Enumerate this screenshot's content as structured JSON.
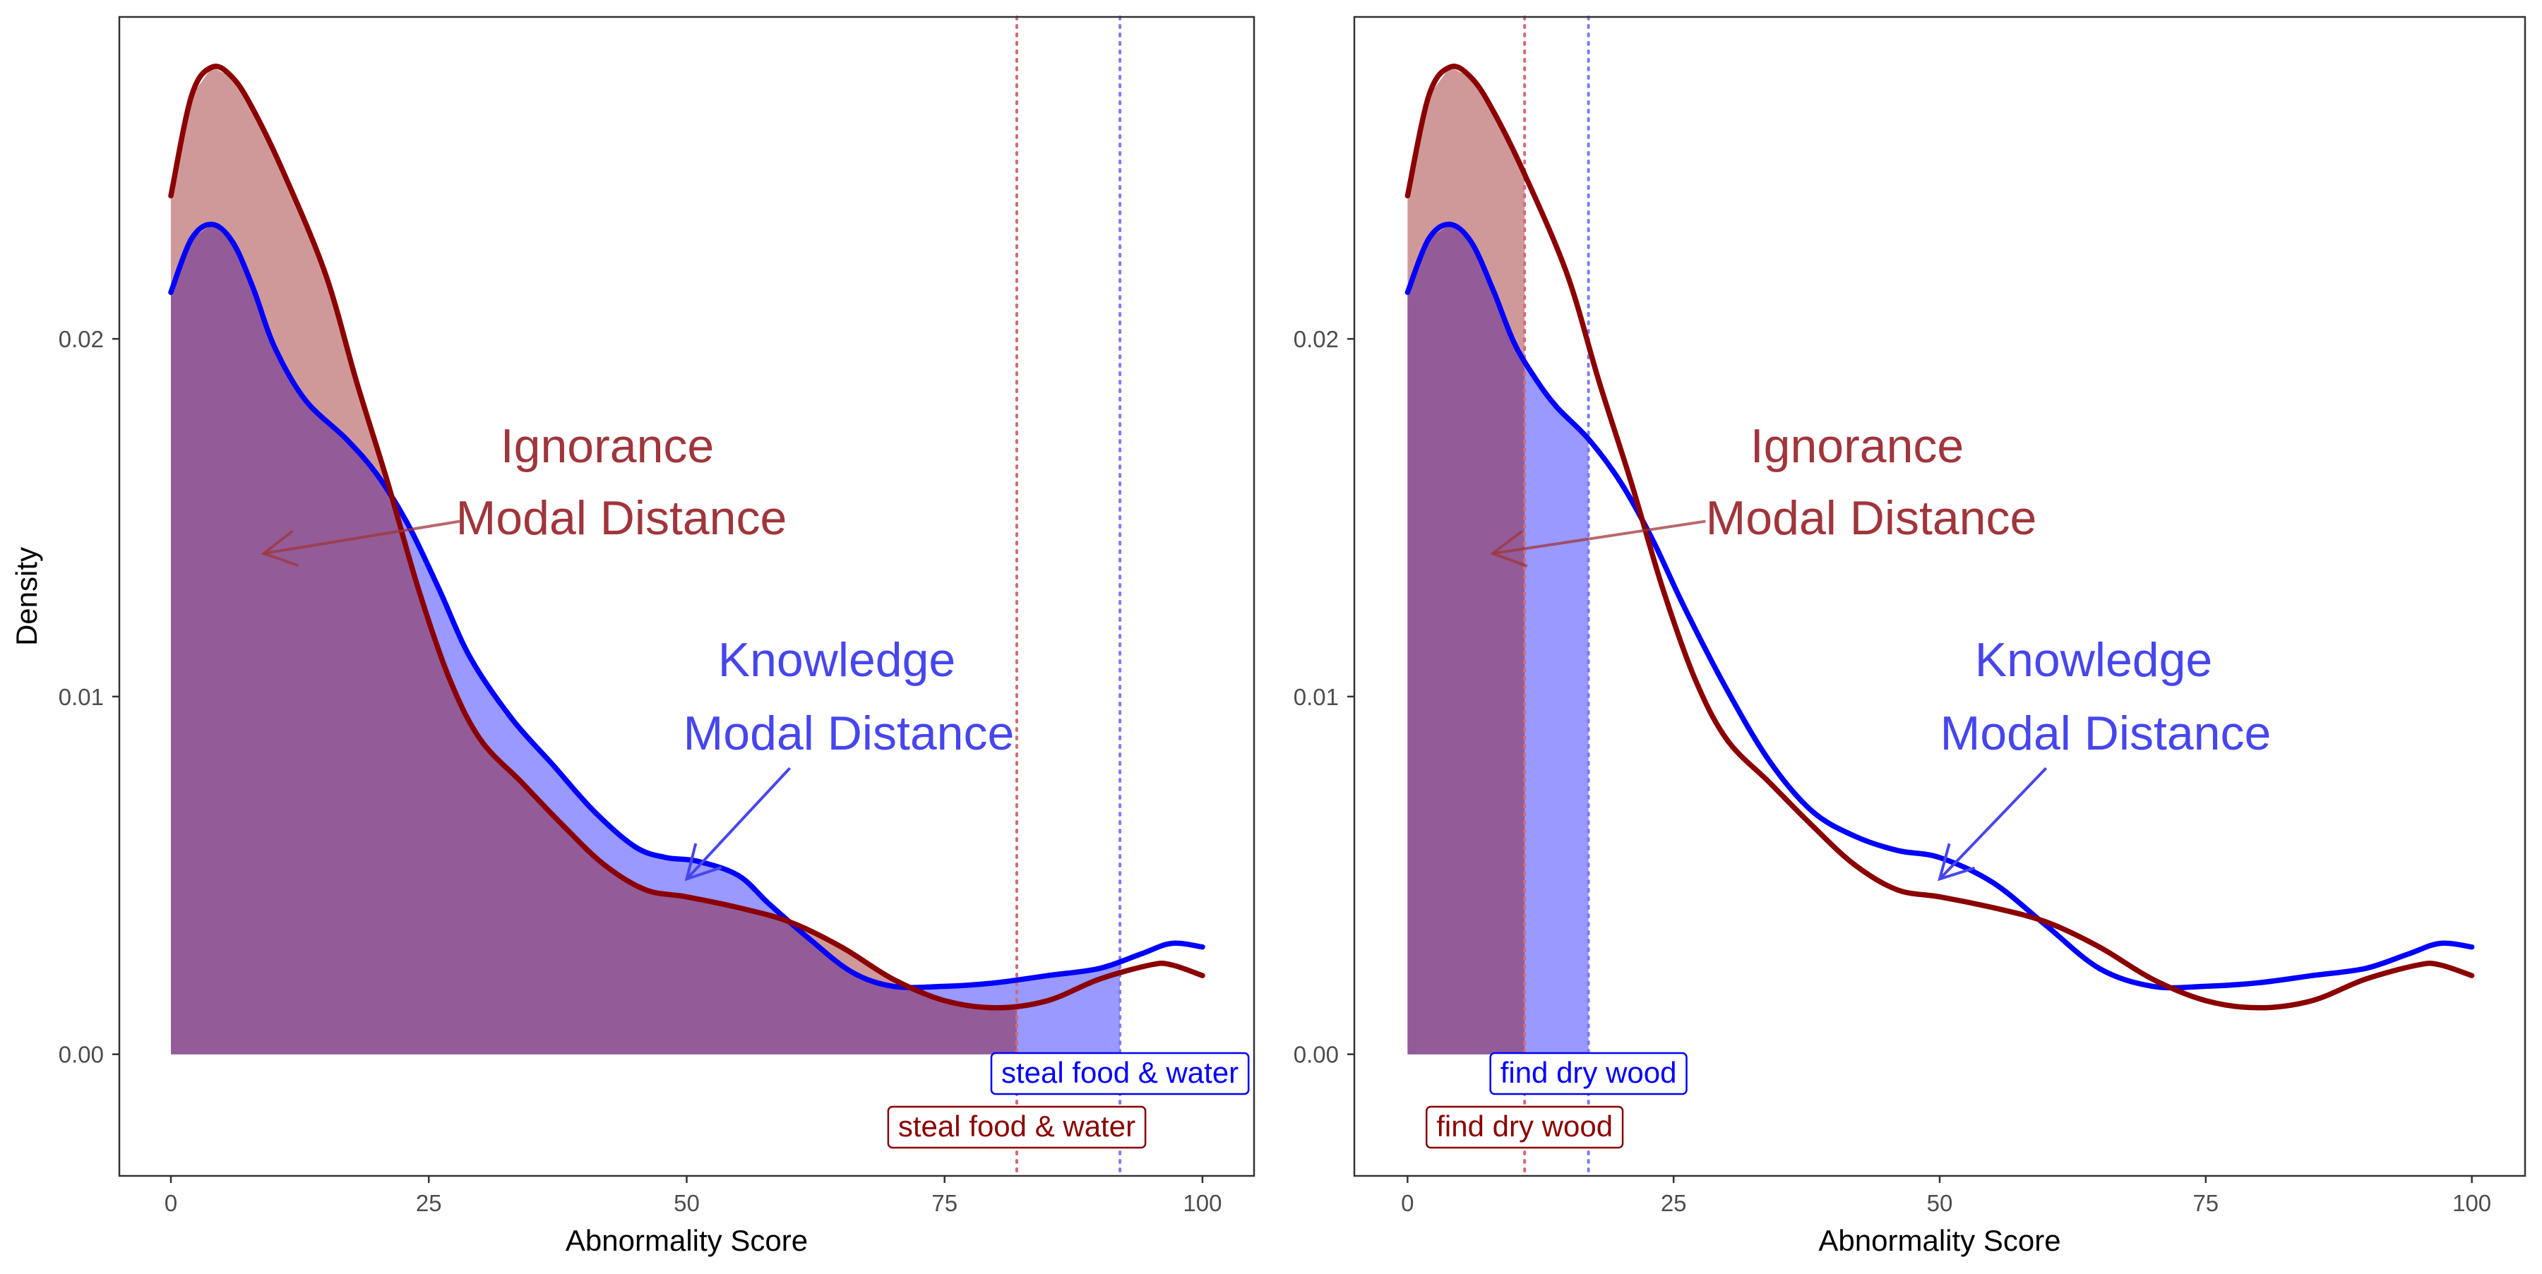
{
  "y_axis_label": "Density",
  "colors": {
    "knowledge": "#0000ff",
    "ignorance": "#8b0000",
    "knowledge_fill": "#9999ff",
    "ignorance_fill": "#d09999",
    "overlap_fill": "#935c99",
    "knowledge_annotation": "#4646ee",
    "ignorance_annotation": "#a0353b",
    "panel_border": "#333333"
  },
  "chart_data": [
    {
      "type": "area",
      "xlabel": "Abnormality Score",
      "ylabel": "Density",
      "xlim": [
        -5,
        105
      ],
      "ylim": [
        -0.0034,
        0.029
      ],
      "x_ticks": [
        0,
        25,
        50,
        75,
        100
      ],
      "y_ticks": [
        0.0,
        0.01,
        0.02
      ],
      "x_tick_labels": [
        "0",
        "25",
        "50",
        "75",
        "100"
      ],
      "y_tick_labels": [
        "0.00",
        "0.01",
        "0.02"
      ],
      "grid": false,
      "series": [
        {
          "key": "knowledge",
          "points": [
            [
              0,
              0.0213
            ],
            [
              2,
              0.0228
            ],
            [
              4,
              0.0232
            ],
            [
              6,
              0.0227
            ],
            [
              8,
              0.0214
            ],
            [
              10,
              0.0198
            ],
            [
              13,
              0.0183
            ],
            [
              17,
              0.0172
            ],
            [
              20,
              0.0162
            ],
            [
              23,
              0.0148
            ],
            [
              26,
              0.013
            ],
            [
              29,
              0.0111
            ],
            [
              33,
              0.0094
            ],
            [
              37,
              0.0081
            ],
            [
              41,
              0.0068
            ],
            [
              45,
              0.0058
            ],
            [
              48,
              0.0055
            ],
            [
              51,
              0.0054
            ],
            [
              55,
              0.005
            ],
            [
              58,
              0.0042
            ],
            [
              62,
              0.0032
            ],
            [
              66,
              0.0023
            ],
            [
              70,
              0.0019
            ],
            [
              75,
              0.0019
            ],
            [
              80,
              0.002
            ],
            [
              85,
              0.0022
            ],
            [
              90,
              0.0024
            ],
            [
              94,
              0.0028
            ],
            [
              97,
              0.0031
            ],
            [
              100,
              0.003
            ]
          ],
          "shade_to_x": 92
        },
        {
          "key": "ignorance",
          "points": [
            [
              0,
              0.024
            ],
            [
              2,
              0.0268
            ],
            [
              4,
              0.0276
            ],
            [
              6,
              0.0273
            ],
            [
              8,
              0.0264
            ],
            [
              11,
              0.0246
            ],
            [
              15,
              0.0218
            ],
            [
              18,
              0.0188
            ],
            [
              21,
              0.016
            ],
            [
              24,
              0.013
            ],
            [
              27,
              0.0105
            ],
            [
              30,
              0.0088
            ],
            [
              34,
              0.0076
            ],
            [
              38,
              0.0064
            ],
            [
              42,
              0.0053
            ],
            [
              46,
              0.0046
            ],
            [
              50,
              0.0044
            ],
            [
              55,
              0.0041
            ],
            [
              60,
              0.0037
            ],
            [
              65,
              0.003
            ],
            [
              70,
              0.0021
            ],
            [
              75,
              0.0015
            ],
            [
              80,
              0.0013
            ],
            [
              85,
              0.0015
            ],
            [
              90,
              0.0021
            ],
            [
              95,
              0.0025
            ],
            [
              97,
              0.0025
            ],
            [
              100,
              0.0022
            ]
          ],
          "shade_to_x": 82
        }
      ],
      "vlines": [
        {
          "key": "ignorance",
          "x": 82
        },
        {
          "key": "knowledge",
          "x": 92
        }
      ],
      "labels": [
        {
          "key": "knowledge",
          "text": "steal food & water",
          "x": 92
        },
        {
          "key": "ignorance",
          "text": "steal food & water",
          "x": 82
        }
      ],
      "annotations": [
        {
          "key": "ignorance",
          "lines": [
            "Ignorance",
            "Modal Distance"
          ],
          "arrow_from": [
            28,
            0.0149
          ],
          "arrow_to": [
            9,
            0.014
          ]
        },
        {
          "key": "knowledge",
          "lines": [
            "Knowledge",
            "Modal Distance"
          ],
          "arrow_from": [
            60,
            0.008
          ],
          "arrow_to": [
            50,
            0.0049
          ]
        }
      ]
    },
    {
      "type": "area",
      "xlabel": "Abnormality Score",
      "ylabel": "",
      "xlim": [
        -5,
        105
      ],
      "ylim": [
        -0.0034,
        0.029
      ],
      "x_ticks": [
        0,
        25,
        50,
        75,
        100
      ],
      "y_ticks": [
        0.0,
        0.01,
        0.02
      ],
      "x_tick_labels": [
        "0",
        "25",
        "50",
        "75",
        "100"
      ],
      "y_tick_labels": [
        "0.00",
        "0.01",
        "0.02"
      ],
      "grid": false,
      "series": [
        {
          "key": "knowledge",
          "points": [
            [
              0,
              0.0213
            ],
            [
              2,
              0.0228
            ],
            [
              4,
              0.0232
            ],
            [
              6,
              0.0227
            ],
            [
              8,
              0.0214
            ],
            [
              10,
              0.0199
            ],
            [
              12,
              0.0189
            ],
            [
              14,
              0.0181
            ],
            [
              17,
              0.0172
            ],
            [
              20,
              0.016
            ],
            [
              23,
              0.0144
            ],
            [
              26,
              0.0125
            ],
            [
              30,
              0.0102
            ],
            [
              34,
              0.0082
            ],
            [
              38,
              0.0068
            ],
            [
              42,
              0.0061
            ],
            [
              46,
              0.0057
            ],
            [
              50,
              0.0055
            ],
            [
              55,
              0.0048
            ],
            [
              60,
              0.0036
            ],
            [
              65,
              0.0024
            ],
            [
              70,
              0.0019
            ],
            [
              75,
              0.0019
            ],
            [
              80,
              0.002
            ],
            [
              85,
              0.0022
            ],
            [
              90,
              0.0024
            ],
            [
              94,
              0.0028
            ],
            [
              97,
              0.0031
            ],
            [
              100,
              0.003
            ]
          ],
          "shade_to_x": 17
        },
        {
          "key": "ignorance",
          "points": [
            [
              0,
              0.024
            ],
            [
              2,
              0.0268
            ],
            [
              4,
              0.0276
            ],
            [
              6,
              0.0273
            ],
            [
              8,
              0.0264
            ],
            [
              11,
              0.0246
            ],
            [
              15,
              0.0218
            ],
            [
              18,
              0.0188
            ],
            [
              21,
              0.016
            ],
            [
              24,
              0.013
            ],
            [
              27,
              0.0105
            ],
            [
              30,
              0.0088
            ],
            [
              34,
              0.0076
            ],
            [
              38,
              0.0064
            ],
            [
              42,
              0.0053
            ],
            [
              46,
              0.0046
            ],
            [
              50,
              0.0044
            ],
            [
              55,
              0.0041
            ],
            [
              60,
              0.0037
            ],
            [
              65,
              0.003
            ],
            [
              70,
              0.0021
            ],
            [
              75,
              0.0015
            ],
            [
              80,
              0.0013
            ],
            [
              85,
              0.0015
            ],
            [
              90,
              0.0021
            ],
            [
              95,
              0.0025
            ],
            [
              97,
              0.0025
            ],
            [
              100,
              0.0022
            ]
          ],
          "shade_to_x": 11
        }
      ],
      "vlines": [
        {
          "key": "ignorance",
          "x": 11
        },
        {
          "key": "knowledge",
          "x": 17
        }
      ],
      "labels": [
        {
          "key": "knowledge",
          "text": "find dry wood",
          "x": 17
        },
        {
          "key": "ignorance",
          "text": "find dry wood",
          "x": 11
        }
      ],
      "annotations": [
        {
          "key": "ignorance",
          "lines": [
            "Ignorance",
            "Modal Distance"
          ],
          "arrow_from": [
            28,
            0.0149
          ],
          "arrow_to": [
            8,
            0.014
          ]
        },
        {
          "key": "knowledge",
          "lines": [
            "Knowledge",
            "Modal Distance"
          ],
          "arrow_from": [
            60,
            0.008
          ],
          "arrow_to": [
            50,
            0.0049
          ]
        }
      ]
    }
  ]
}
